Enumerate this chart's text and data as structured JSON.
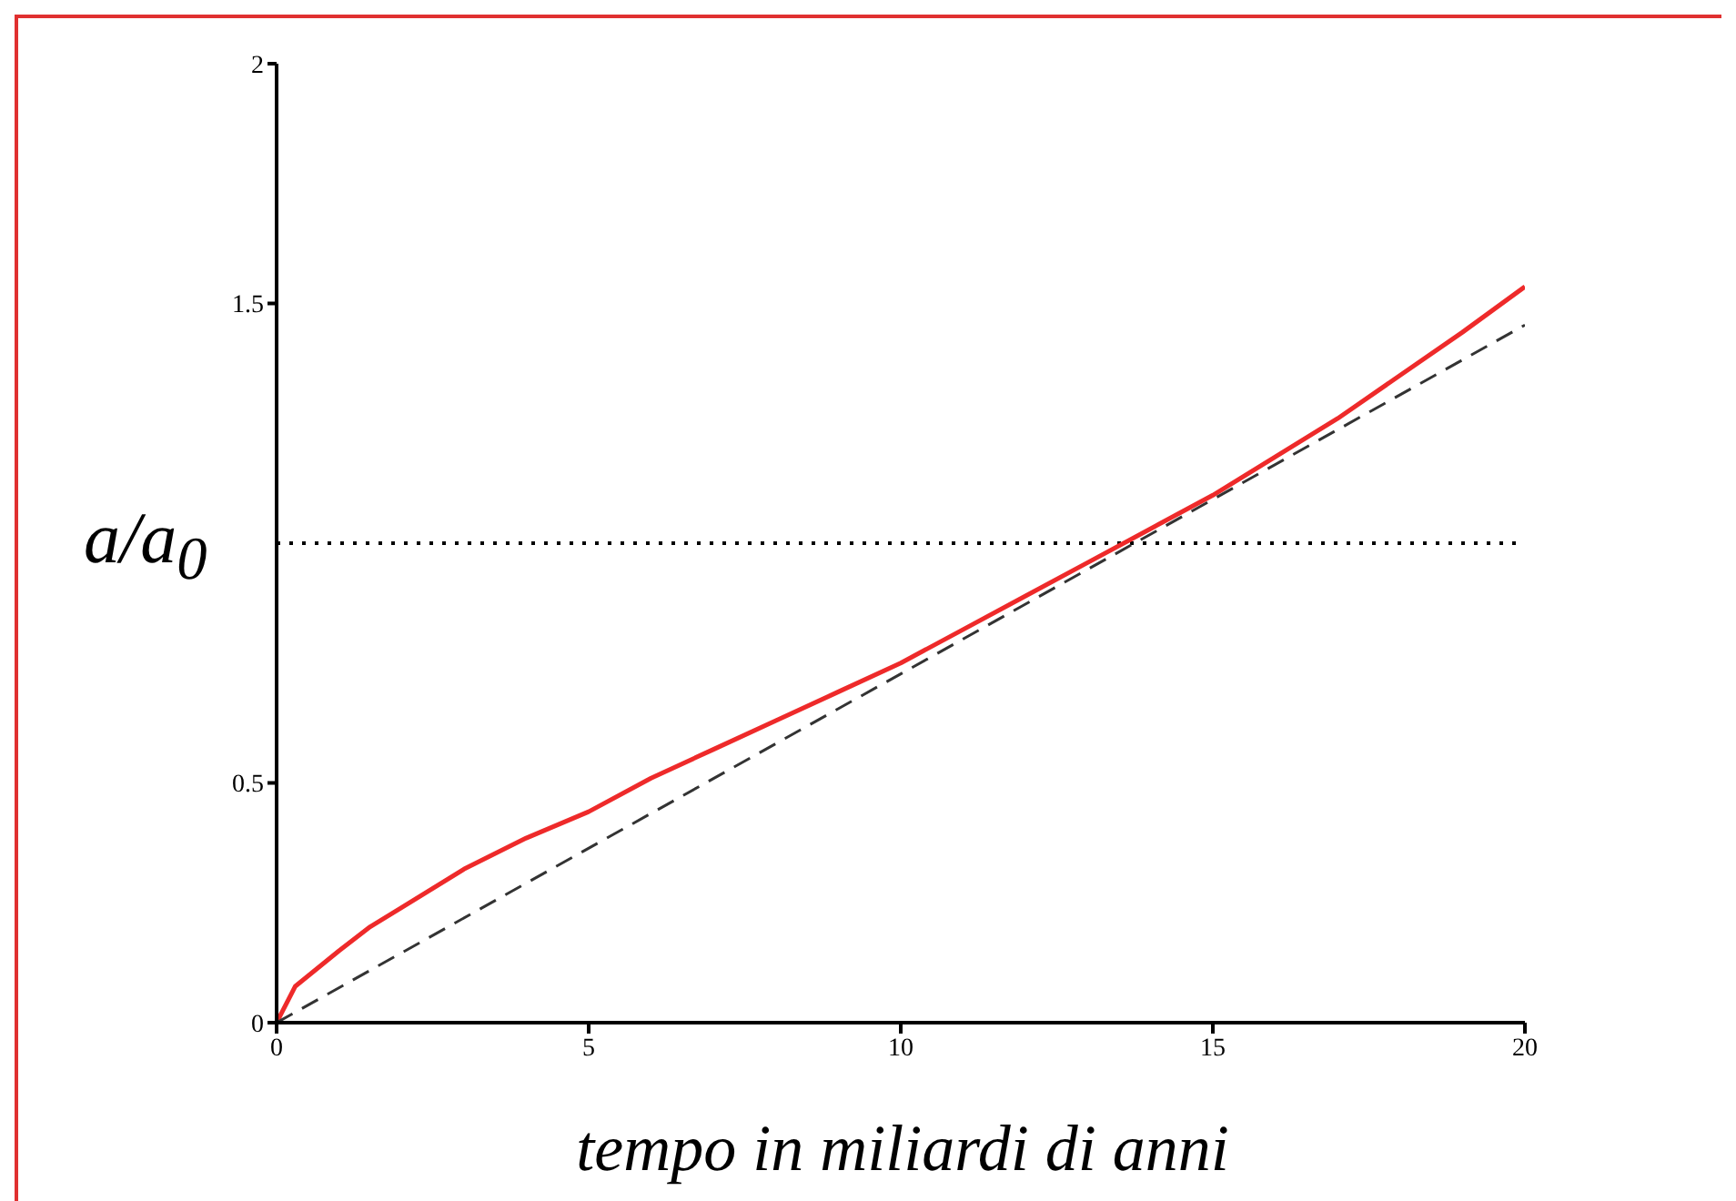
{
  "chart_data": {
    "type": "line",
    "xlabel": "tempo in miliardi di anni",
    "ylabel": "a/a$_{0}$",
    "xlim": [
      0,
      20
    ],
    "xticks": [
      0,
      5,
      10,
      15,
      20
    ],
    "ylim": [
      0,
      2
    ],
    "yticks": [
      0,
      0.5,
      1.5,
      2
    ],
    "marker": "none",
    "grid": false,
    "legend": false,
    "series": [
      {
        "color": "#ee2a2a",
        "line_style": "solid",
        "x": [
          0,
          0.3,
          1,
          1.5,
          2,
          3,
          4,
          5,
          6,
          7,
          8,
          9,
          10,
          11,
          12,
          13,
          14,
          15,
          16,
          17,
          18,
          19,
          20
        ],
        "values": [
          0,
          0.076,
          0.15,
          0.2,
          0.24,
          0.32,
          0.385,
          0.44,
          0.51,
          0.57,
          0.63,
          0.69,
          0.75,
          0.82,
          0.89,
          0.96,
          1.03,
          1.1,
          1.18,
          1.26,
          1.35,
          1.44,
          1.535
        ]
      },
      {
        "color": "#333333",
        "line_style": "dashed",
        "x": [
          0,
          20
        ],
        "values": [
          0,
          1.455
        ]
      }
    ],
    "ref_lines": [
      {
        "axis": "y",
        "value": 1,
        "color": "#000000",
        "line_style": "dotted"
      }
    ]
  }
}
